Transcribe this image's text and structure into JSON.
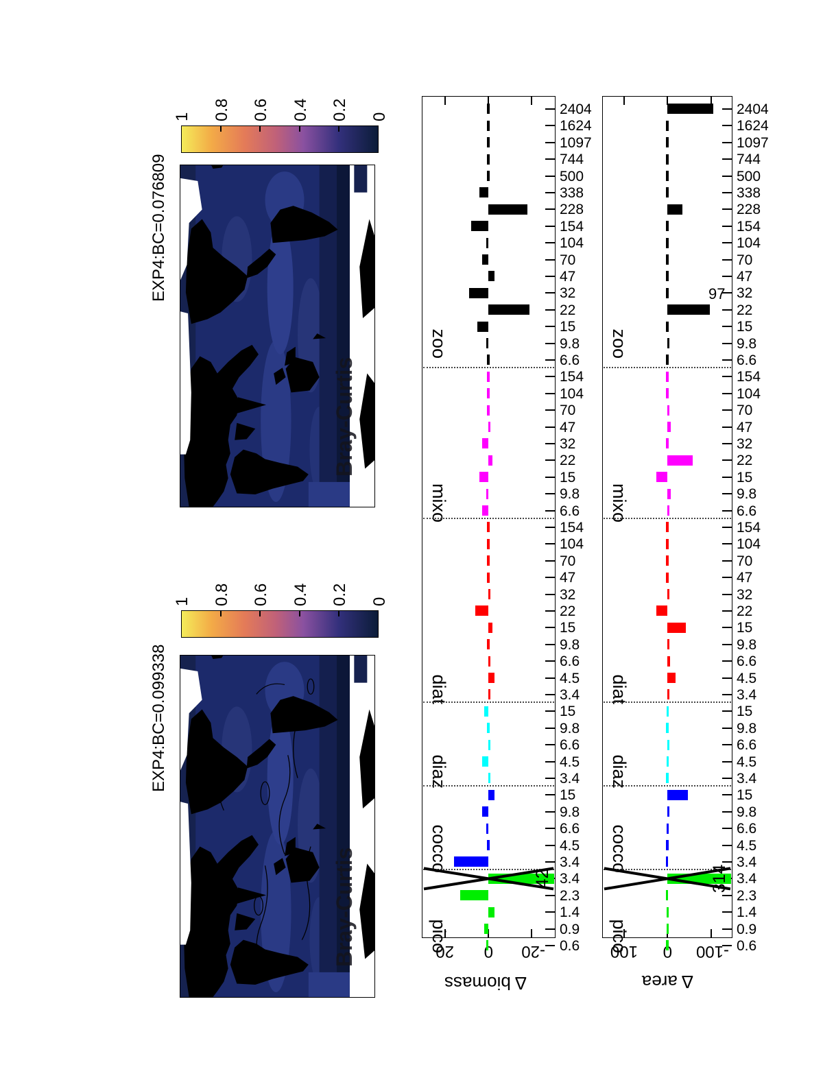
{
  "colors": {
    "pico": "#00ee00",
    "cocco": "#0000ff",
    "diaz": "#00ffff",
    "diat": "#ff0000",
    "mixo": "#ff00ff",
    "zoo": "#000000",
    "ocean_base": "#1c2a6b",
    "ocean_dark": "#0c1738",
    "land": "#000000",
    "nodata": "#ffffff",
    "cbar_top": "#f4ec5a",
    "cbar_bottom": "#0b1c38"
  },
  "maps": [
    {
      "title": "EXP4:BC=0.099338",
      "overlay_label": "Bray-Curtis",
      "has_contours": true
    },
    {
      "title": "EXP4:BC=0.076809",
      "overlay_label": "Bray-Curtis",
      "has_contours": false
    }
  ],
  "colorbar": {
    "tick_labels": [
      "1",
      "0.8",
      "0.6",
      "0.4",
      "0.2",
      "0"
    ],
    "range": [
      0,
      1
    ]
  },
  "chart_data": [
    {
      "type": "bar",
      "id": "delta_biomass",
      "ylabel": "Δ biomass",
      "ytick_labels": [
        "20",
        "0",
        "-20"
      ],
      "ytick_values": [
        20,
        0,
        -20
      ],
      "ylim": [
        -31,
        31
      ],
      "grid": false,
      "groups": [
        {
          "label": "pico",
          "color": "#00ee00",
          "sizes": [
            "0.6",
            "0.9",
            "1.4",
            "2.3",
            "3.4"
          ],
          "values": [
            1,
            2,
            -3,
            13,
            -42
          ]
        },
        {
          "label": "cocco",
          "color": "#0000ff",
          "sizes": [
            "3.4",
            "4.5",
            "6.6",
            "9.8",
            "15"
          ],
          "values": [
            16,
            0,
            1,
            3,
            -3
          ]
        },
        {
          "label": "diaz",
          "color": "#00ffff",
          "sizes": [
            "3.4",
            "4.5",
            "6.6",
            "9.8",
            "15"
          ],
          "values": [
            -1,
            3,
            -1,
            0,
            2
          ]
        },
        {
          "label": "diat",
          "color": "#ff0000",
          "sizes": [
            "3.4",
            "4.5",
            "6.6",
            "9.8",
            "15",
            "22",
            "32",
            "47",
            "70",
            "104",
            "154"
          ],
          "values": [
            -1,
            -3,
            -1,
            0,
            -2,
            6,
            -1,
            0,
            0,
            0,
            0
          ]
        },
        {
          "label": "mixo",
          "color": "#ff00ff",
          "sizes": [
            "6.6",
            "9.8",
            "15",
            "22",
            "32",
            "47",
            "70",
            "104",
            "154"
          ],
          "values": [
            3,
            1,
            4,
            -2,
            3,
            -1,
            0,
            0,
            0
          ]
        },
        {
          "label": "zoo",
          "color": "#000000",
          "sizes": [
            "6.6",
            "9.8",
            "15",
            "22",
            "32",
            "47",
            "70",
            "104",
            "154",
            "228",
            "338",
            "500",
            "744",
            "1097",
            "1624",
            "2404"
          ],
          "values": [
            0,
            1,
            5,
            -19,
            9,
            -3,
            3,
            1,
            8,
            -18,
            4,
            0,
            0,
            0,
            0,
            0
          ]
        }
      ],
      "annotations": [
        {
          "group": "pico",
          "size_index": 4,
          "text": "42",
          "placement": "in-bar"
        }
      ],
      "x_markers": [
        {
          "group": "pico",
          "size_index": 4
        }
      ]
    },
    {
      "type": "bar",
      "id": "delta_area",
      "ylabel": "Δ area",
      "ytick_labels": [
        "100",
        "0",
        "-100"
      ],
      "ytick_values": [
        100,
        0,
        -100
      ],
      "ylim": [
        -150,
        150
      ],
      "grid": false,
      "groups": [
        {
          "label": "pico",
          "color": "#00ee00",
          "sizes": [
            "0.6",
            "0.9",
            "1.4",
            "2.3",
            "3.4"
          ],
          "values": [
            0,
            1,
            1,
            3,
            -314
          ]
        },
        {
          "label": "cocco",
          "color": "#0000ff",
          "sizes": [
            "3.4",
            "4.5",
            "6.6",
            "9.8",
            "15"
          ],
          "values": [
            3,
            0,
            2,
            -2,
            -47
          ]
        },
        {
          "label": "diaz",
          "color": "#00ffff",
          "sizes": [
            "3.4",
            "4.5",
            "6.6",
            "9.8",
            "15"
          ],
          "values": [
            0,
            2,
            -2,
            0,
            2
          ]
        },
        {
          "label": "diat",
          "color": "#ff0000",
          "sizes": [
            "3.4",
            "4.5",
            "6.6",
            "9.8",
            "15",
            "22",
            "32",
            "47",
            "70",
            "104",
            "154"
          ],
          "values": [
            -3,
            -19,
            -6,
            -3,
            -43,
            25,
            -3,
            0,
            0,
            0,
            0
          ]
        },
        {
          "label": "mixo",
          "color": "#ff00ff",
          "sizes": [
            "6.6",
            "9.8",
            "15",
            "22",
            "32",
            "47",
            "70",
            "104",
            "154"
          ],
          "values": [
            -3,
            -8,
            25,
            -58,
            0,
            -8,
            -3,
            0,
            0
          ]
        },
        {
          "label": "zoo",
          "color": "#000000",
          "sizes": [
            "6.6",
            "9.8",
            "15",
            "22",
            "32",
            "47",
            "70",
            "104",
            "154",
            "228",
            "338",
            "500",
            "744",
            "1097",
            "1624",
            "2404"
          ],
          "values": [
            0,
            -5,
            0,
            -97,
            0,
            0,
            0,
            0,
            0,
            -35,
            0,
            0,
            0,
            0,
            0,
            -105
          ]
        }
      ],
      "annotations": [
        {
          "group": "pico",
          "size_index": 4,
          "text": "314",
          "placement": "in-bar"
        },
        {
          "group": "zoo",
          "size_index": 3,
          "text": "97",
          "placement": "beside-rotated"
        }
      ],
      "x_markers": [
        {
          "group": "pico",
          "size_index": 4
        }
      ]
    }
  ]
}
